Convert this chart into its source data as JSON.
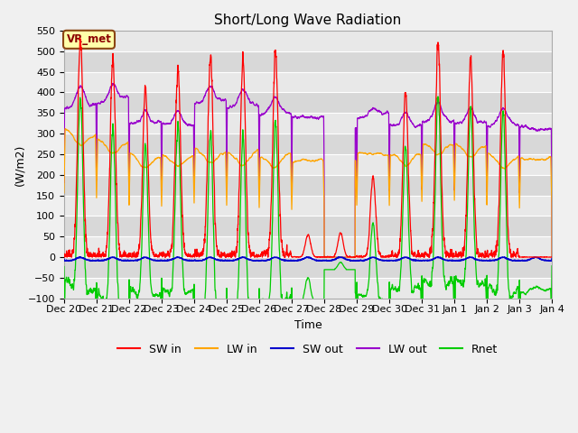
{
  "title": "Short/Long Wave Radiation",
  "ylabel": "(W/m2)",
  "xlabel": "Time",
  "ylim": [
    -100,
    550
  ],
  "xlim": [
    0,
    15
  ],
  "annotation": "VR_met",
  "tick_labels": [
    "Dec 20",
    "Dec 21",
    "Dec 22",
    "Dec 23",
    "Dec 24",
    "Dec 25",
    "Dec 26",
    "Dec 27",
    "Dec 28",
    "Dec 29",
    "Dec 30",
    "Dec 31",
    "Jan 1",
    "Jan 2",
    "Jan 3",
    "Jan 4"
  ],
  "legend_labels": [
    "SW in",
    "LW in",
    "SW out",
    "LW out",
    "Rnet"
  ],
  "colors": {
    "SW_in": "#ff0000",
    "LW_in": "#ffa500",
    "SW_out": "#0000cc",
    "LW_out": "#9900cc",
    "Rnet": "#00cc00"
  },
  "fig_bg": "#f0f0f0",
  "plot_bg_light": "#e8e8e8",
  "plot_bg_dark": "#d8d8d8",
  "stripe_interval": 50,
  "yticks": [
    -100,
    -50,
    0,
    50,
    100,
    150,
    200,
    250,
    300,
    350,
    400,
    450,
    500,
    550
  ]
}
